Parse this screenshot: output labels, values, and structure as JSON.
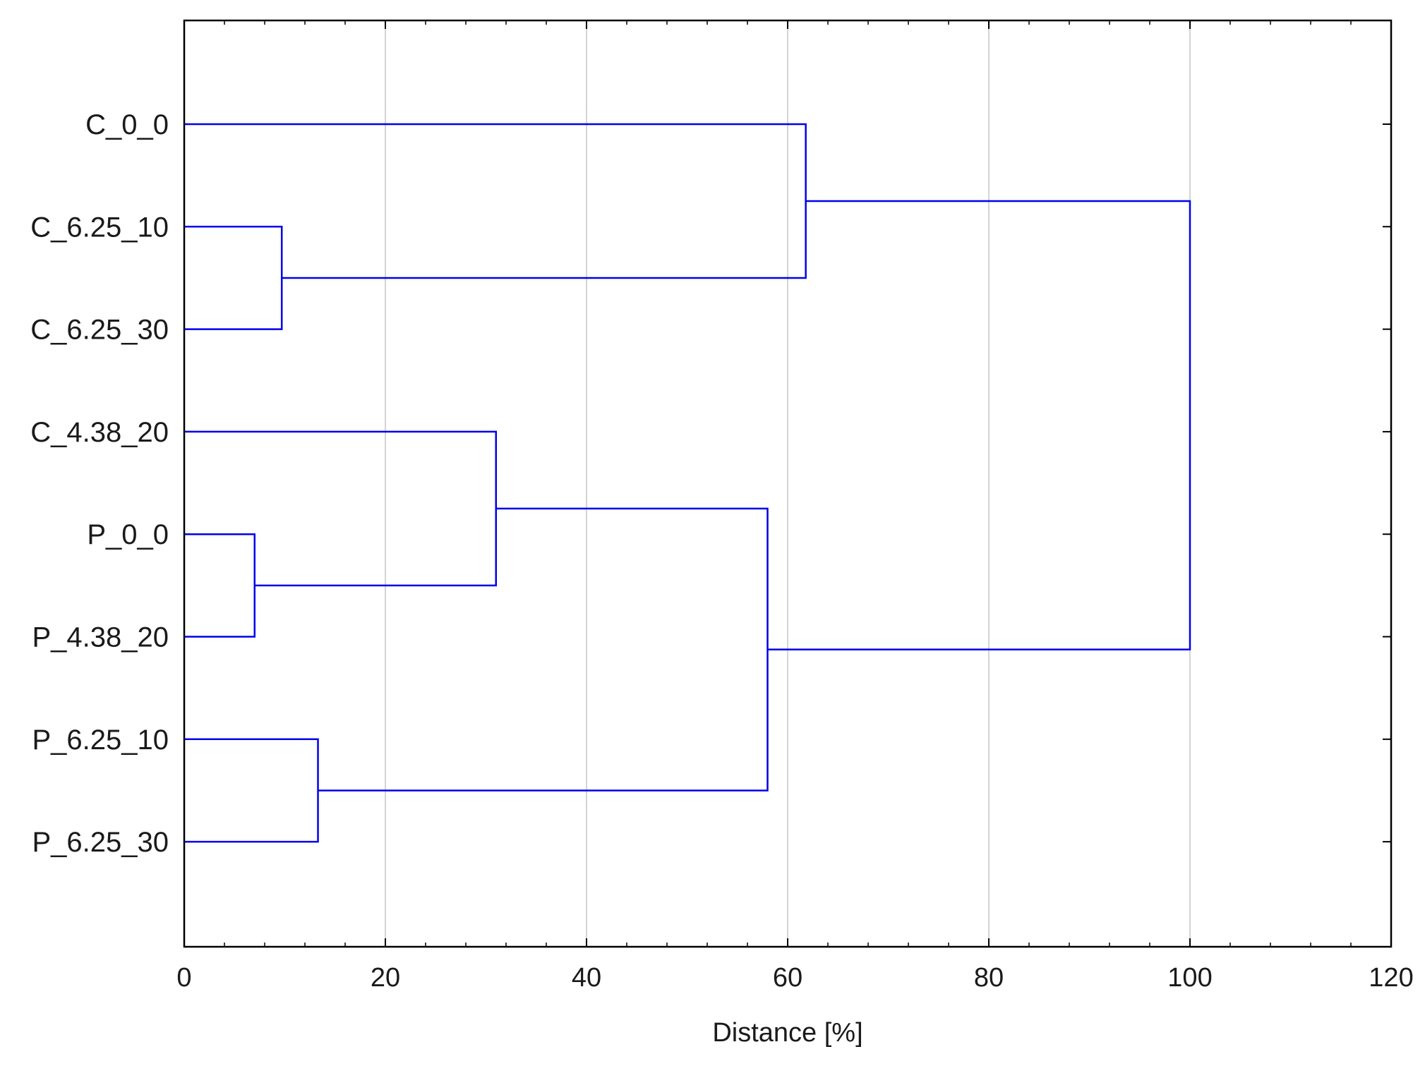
{
  "chart_data": {
    "type": "dendrogram",
    "title": "",
    "xlabel": "Distance [%]",
    "ylabel": "",
    "xlim": [
      0,
      120
    ],
    "xticks": [
      0,
      20,
      40,
      60,
      80,
      100,
      120
    ],
    "grid": "vertical",
    "link_color": "#0000ee",
    "grid_color": "#d4d4d4",
    "leaves": [
      "C_0_0",
      "C_6.25_10",
      "C_6.25_30",
      "C_4.38_20",
      "P_0_0",
      "P_4.38_20",
      "P_6.25_10",
      "P_6.25_30"
    ],
    "merges": [
      {
        "left": "C_6.25_10",
        "right": "C_6.25_30",
        "distance": 9.7
      },
      {
        "left": "P_0_0",
        "right": "P_4.38_20",
        "distance": 7.0
      },
      {
        "left": "P_6.25_10",
        "right": "P_6.25_30",
        "distance": 13.3
      },
      {
        "left": "C_4.38_20",
        "right": "P_0_0 + P_4.38_20",
        "distance": 31.0
      },
      {
        "left": "C_4.38_20 + P_0_0 + P_4.38_20",
        "right": "P_6.25_10 + P_6.25_30",
        "distance": 58.0
      },
      {
        "left": "C_0_0",
        "right": "C_6.25_10 + C_6.25_30",
        "distance": 61.8
      },
      {
        "left": "C_0_0 + C_6.25_10 + C_6.25_30",
        "right": "C_4.38_20 + P_0_0 + P_4.38_20 + P_6.25_10 + P_6.25_30",
        "distance": 100.0
      }
    ]
  }
}
